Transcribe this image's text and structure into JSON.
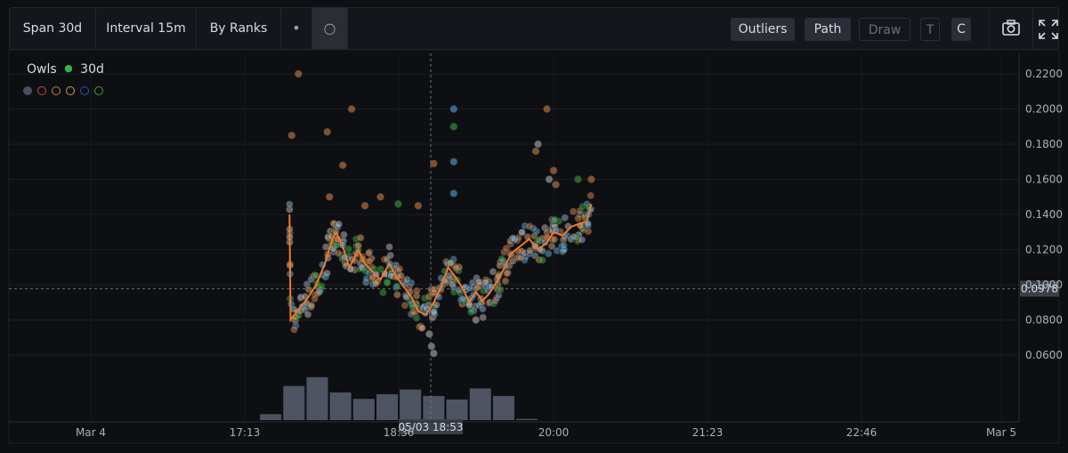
{
  "toolbar": {
    "span_label": "Span 30d",
    "interval_label": "Interval 15m",
    "ranks_label": "By Ranks",
    "dot_glyph": "•",
    "circle_glyph": "○",
    "outliers_label": "Outliers",
    "path_label": "Path",
    "draw_label": "Draw",
    "t_label": "T",
    "c_label": "C",
    "icons": [
      "camera-icon",
      "fullscreen-icon"
    ]
  },
  "legend": {
    "name": "Owls",
    "symbol": "●",
    "span": "30d",
    "rank_colors": [
      "#4a5060",
      "#c0503a",
      "#c87a40",
      "#c0a040",
      "#3050c0",
      "#3aa040"
    ]
  },
  "chart_data": {
    "type": "scatter",
    "y_ticks": [
      "0.2200",
      "0.2000",
      "0.1800",
      "0.1600",
      "0.1400",
      "0.1200",
      "0.1000",
      "0.0800",
      "0.0600"
    ],
    "ylim": [
      0.04,
      0.23
    ],
    "x_ticks": [
      "Mar 4",
      "17:13",
      "18:36",
      "20:00",
      "21:23",
      "22:46",
      "Mar 5"
    ],
    "crosshair": {
      "x_label": "05/03 18:53",
      "y_label": "0.0978",
      "y_value": 0.0978
    },
    "path": [
      [
        17.62,
        0.14
      ],
      [
        17.63,
        0.08
      ],
      [
        17.7,
        0.086
      ],
      [
        17.78,
        0.092
      ],
      [
        17.86,
        0.1
      ],
      [
        17.94,
        0.112
      ],
      [
        18.0,
        0.125
      ],
      [
        18.04,
        0.13
      ],
      [
        18.1,
        0.122
      ],
      [
        18.16,
        0.11
      ],
      [
        18.24,
        0.12
      ],
      [
        18.3,
        0.112
      ],
      [
        18.36,
        0.108
      ],
      [
        18.44,
        0.103
      ],
      [
        18.52,
        0.112
      ],
      [
        18.58,
        0.105
      ],
      [
        18.66,
        0.098
      ],
      [
        18.72,
        0.093
      ],
      [
        18.78,
        0.085
      ],
      [
        18.85,
        0.083
      ],
      [
        18.92,
        0.09
      ],
      [
        18.98,
        0.098
      ],
      [
        19.05,
        0.11
      ],
      [
        19.12,
        0.104
      ],
      [
        19.18,
        0.098
      ],
      [
        19.24,
        0.09
      ],
      [
        19.3,
        0.096
      ],
      [
        19.36,
        0.091
      ],
      [
        19.42,
        0.095
      ],
      [
        19.5,
        0.103
      ],
      [
        19.56,
        0.11
      ],
      [
        19.62,
        0.118
      ],
      [
        19.7,
        0.122
      ],
      [
        19.78,
        0.126
      ],
      [
        19.86,
        0.12
      ],
      [
        19.94,
        0.124
      ],
      [
        20.0,
        0.13
      ],
      [
        20.08,
        0.128
      ],
      [
        20.16,
        0.133
      ],
      [
        20.24,
        0.135
      ],
      [
        20.3,
        0.136
      ],
      [
        20.34,
        0.146
      ]
    ],
    "outliers": [
      [
        17.64,
        0.185,
        "#c8804a"
      ],
      [
        17.7,
        0.22,
        "#c8804a"
      ],
      [
        17.96,
        0.187,
        "#c8804a"
      ],
      [
        18.18,
        0.2,
        "#c8804a"
      ],
      [
        18.1,
        0.168,
        "#c8804a"
      ],
      [
        18.92,
        0.169,
        "#c8804a"
      ],
      [
        19.1,
        0.2,
        "#5aa0d0"
      ],
      [
        19.1,
        0.19,
        "#3aa040"
      ],
      [
        19.1,
        0.17,
        "#5aa0d0"
      ],
      [
        19.1,
        0.152,
        "#5aa0d0"
      ],
      [
        19.94,
        0.2,
        "#c8804a"
      ],
      [
        19.86,
        0.18,
        "#b0b0b0"
      ],
      [
        19.84,
        0.176,
        "#c8804a"
      ],
      [
        20.0,
        0.165,
        "#c8804a"
      ],
      [
        20.02,
        0.157,
        "#c8804a"
      ],
      [
        19.96,
        0.16,
        "#b0b0b0"
      ],
      [
        20.22,
        0.16,
        "#3aa040"
      ],
      [
        20.34,
        0.16,
        "#c8804a"
      ],
      [
        18.88,
        0.072,
        "#b0b0b0"
      ],
      [
        18.9,
        0.065,
        "#b0b0b0"
      ],
      [
        18.92,
        0.061,
        "#b0b0b0"
      ],
      [
        19.3,
        0.08,
        "#b0b0b0"
      ],
      [
        18.3,
        0.145,
        "#c8804a"
      ],
      [
        18.44,
        0.15,
        "#c8804a"
      ],
      [
        18.78,
        0.145,
        "#c8804a"
      ],
      [
        17.98,
        0.15,
        "#c8804a"
      ],
      [
        18.6,
        0.146,
        "#3aa040"
      ]
    ],
    "volume": [
      {
        "x": 17.45,
        "h": 0.1
      },
      {
        "x": 17.66,
        "h": 0.58
      },
      {
        "x": 17.87,
        "h": 0.73
      },
      {
        "x": 18.08,
        "h": 0.47
      },
      {
        "x": 18.29,
        "h": 0.36
      },
      {
        "x": 18.5,
        "h": 0.44
      },
      {
        "x": 18.71,
        "h": 0.52
      },
      {
        "x": 18.92,
        "h": 0.41
      },
      {
        "x": 19.13,
        "h": 0.35
      },
      {
        "x": 19.34,
        "h": 0.54
      },
      {
        "x": 19.55,
        "h": 0.41
      },
      {
        "x": 19.76,
        "h": 0.02
      }
    ]
  }
}
